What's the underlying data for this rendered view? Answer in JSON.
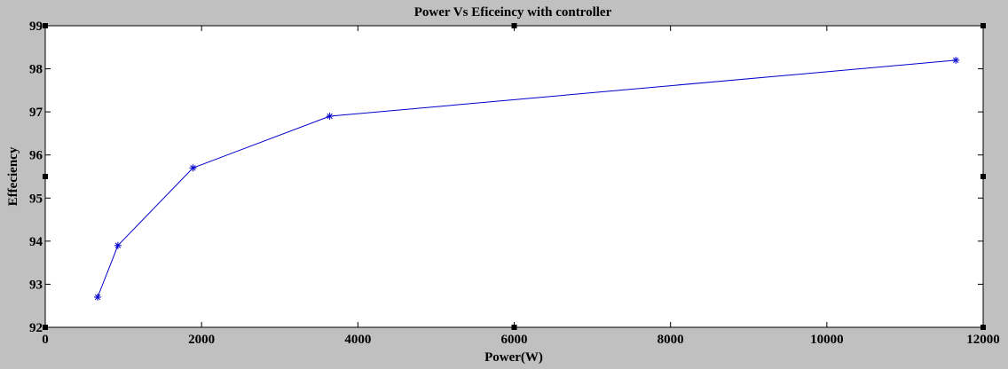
{
  "chart_data": {
    "type": "line",
    "title": "Power Vs Eficeincy with controller",
    "xlabel": "Power(W)",
    "ylabel": "Effeciency",
    "xlim": [
      0,
      12000
    ],
    "ylim": [
      92,
      99
    ],
    "x_ticks": [
      0,
      2000,
      4000,
      6000,
      8000,
      10000,
      12000
    ],
    "y_ticks": [
      92,
      93,
      94,
      95,
      96,
      97,
      98,
      99
    ],
    "grid": false,
    "series": [
      {
        "x": [
          670,
          930,
          1890,
          3640,
          11650
        ],
        "y": [
          92.7,
          93.9,
          95.7,
          96.9,
          98.2
        ],
        "color": "#0000cc",
        "marker": "asterisk"
      }
    ]
  }
}
